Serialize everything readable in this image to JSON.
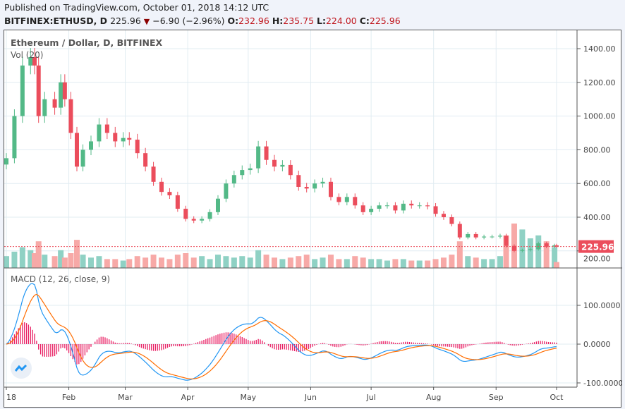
{
  "header": {
    "published": "Published on TradingView.com, October 01, 2018 14:12 UTC",
    "symbol": "BITFINEX:ETHUSD, D",
    "last": "225.96",
    "change": "−6.90 (−2.96%)",
    "o_label": "O:",
    "o": "232.96",
    "h_label": "H:",
    "h": "235.75",
    "l_label": "L:",
    "l": "224.00",
    "c_label": "C:",
    "c": "225.96"
  },
  "legend": {
    "title": "Ethereum / Dollar, D, BITFINEX",
    "vol": "Vol (20)",
    "macd": "MACD (12, 26, close, 9)"
  },
  "last_price_label": "225.96",
  "colors": {
    "up": "#53b987",
    "down": "#eb4d5c",
    "vol_up": "#8fd1c4",
    "vol_down": "#f7a9a7",
    "macd": "#2196f3",
    "signal": "#ff6d00",
    "hist": "#e91e63",
    "grid": "#e1ecf2"
  },
  "chart_data": [
    {
      "type": "candlestick",
      "title": "Ethereum / Dollar, D, BITFINEX",
      "y_ticks": [
        "1400.00",
        "1200.00",
        "1000.00",
        "800.00",
        "600.00",
        "400.00",
        "200.00"
      ],
      "ylim": [
        200,
        1400
      ],
      "x_ticks": [
        "18",
        "Feb",
        "Mar",
        "Apr",
        "May",
        "Jun",
        "Jul",
        "Aug",
        "Sep",
        "Oct"
      ],
      "x_tick_dates": [
        "2018-01-01",
        "2018-02-01",
        "2018-03-01",
        "2018-04-01",
        "2018-05-01",
        "2018-06-01",
        "2018-07-01",
        "2018-08-01",
        "2018-09-01",
        "2018-10-01"
      ],
      "dates": [
        "2018-01-01",
        "2018-01-05",
        "2018-01-09",
        "2018-01-13",
        "2018-01-15",
        "2018-01-17",
        "2018-01-20",
        "2018-01-25",
        "2018-01-28",
        "2018-01-30",
        "2018-02-02",
        "2018-02-05",
        "2018-02-08",
        "2018-02-12",
        "2018-02-16",
        "2018-02-20",
        "2018-02-24",
        "2018-02-28",
        "2018-03-03",
        "2018-03-07",
        "2018-03-11",
        "2018-03-15",
        "2018-03-19",
        "2018-03-23",
        "2018-03-27",
        "2018-03-31",
        "2018-04-04",
        "2018-04-08",
        "2018-04-12",
        "2018-04-16",
        "2018-04-20",
        "2018-04-24",
        "2018-04-28",
        "2018-05-02",
        "2018-05-06",
        "2018-05-10",
        "2018-05-14",
        "2018-05-18",
        "2018-05-22",
        "2018-05-26",
        "2018-05-30",
        "2018-06-03",
        "2018-06-07",
        "2018-06-11",
        "2018-06-15",
        "2018-06-19",
        "2018-06-23",
        "2018-06-27",
        "2018-07-01",
        "2018-07-05",
        "2018-07-09",
        "2018-07-13",
        "2018-07-17",
        "2018-07-21",
        "2018-07-25",
        "2018-07-29",
        "2018-08-02",
        "2018-08-06",
        "2018-08-10",
        "2018-08-14",
        "2018-08-18",
        "2018-08-22",
        "2018-08-26",
        "2018-08-30",
        "2018-09-03",
        "2018-09-06",
        "2018-09-10",
        "2018-09-14",
        "2018-09-18",
        "2018-09-22",
        "2018-09-26",
        "2018-09-30",
        "2018-10-01"
      ],
      "close": [
        750,
        1000,
        1300,
        1350,
        1300,
        1000,
        1100,
        1050,
        1200,
        1100,
        900,
        700,
        800,
        850,
        950,
        900,
        850,
        870,
        860,
        780,
        700,
        610,
        550,
        530,
        450,
        390,
        380,
        390,
        430,
        510,
        600,
        650,
        680,
        690,
        820,
        740,
        700,
        710,
        650,
        580,
        570,
        600,
        610,
        520,
        490,
        520,
        470,
        430,
        450,
        470,
        470,
        440,
        480,
        470,
        470,
        465,
        420,
        400,
        360,
        280,
        300,
        280,
        285,
        285,
        290,
        230,
        200,
        205,
        210,
        245,
        225,
        232.96,
        225.96
      ],
      "volume": [
        40,
        55,
        70,
        60,
        50,
        90,
        45,
        40,
        60,
        35,
        50,
        95,
        45,
        35,
        40,
        30,
        30,
        25,
        30,
        40,
        35,
        45,
        35,
        30,
        45,
        50,
        35,
        40,
        30,
        45,
        40,
        35,
        40,
        35,
        60,
        45,
        35,
        30,
        35,
        40,
        45,
        30,
        35,
        45,
        30,
        30,
        40,
        35,
        30,
        30,
        25,
        30,
        30,
        25,
        25,
        25,
        30,
        35,
        45,
        90,
        40,
        35,
        30,
        30,
        40,
        110,
        150,
        130,
        100,
        110,
        90,
        70,
        20
      ],
      "last_price": 225.96
    },
    {
      "type": "line",
      "title": "MACD (12, 26, close, 9)",
      "y_ticks": [
        "100.0000",
        "0.0000",
        "-100.0000"
      ],
      "ylim": [
        -105,
        175
      ]
    }
  ]
}
